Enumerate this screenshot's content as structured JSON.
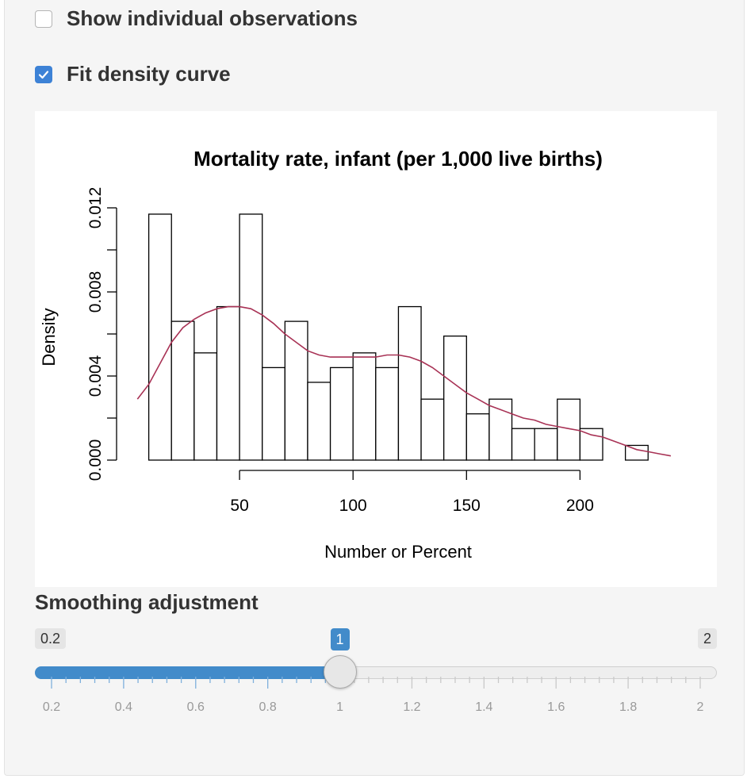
{
  "checkboxes": {
    "show_individual": {
      "label": "Show individual observations",
      "checked": false
    },
    "fit_density": {
      "label": "Fit density curve",
      "checked": true
    }
  },
  "chart_data": {
    "type": "bar",
    "title": "Mortality rate, infant (per 1,000 live births)",
    "xlabel": "Number or Percent",
    "ylabel": "Density",
    "x_ticks": [
      50,
      100,
      150,
      200
    ],
    "y_ticks": [
      "0.000",
      "0.004",
      "0.008",
      "0.012"
    ],
    "xlim": [
      5,
      240
    ],
    "ylim": [
      0,
      0.012
    ],
    "bin_width": 10,
    "bins": [
      {
        "start": 10,
        "end": 20,
        "density": 0.0117
      },
      {
        "start": 20,
        "end": 30,
        "density": 0.0066
      },
      {
        "start": 30,
        "end": 40,
        "density": 0.0051
      },
      {
        "start": 40,
        "end": 50,
        "density": 0.0073
      },
      {
        "start": 50,
        "end": 60,
        "density": 0.0117
      },
      {
        "start": 60,
        "end": 70,
        "density": 0.0044
      },
      {
        "start": 70,
        "end": 80,
        "density": 0.0066
      },
      {
        "start": 80,
        "end": 90,
        "density": 0.0037
      },
      {
        "start": 90,
        "end": 100,
        "density": 0.0044
      },
      {
        "start": 100,
        "end": 110,
        "density": 0.0051
      },
      {
        "start": 110,
        "end": 120,
        "density": 0.0044
      },
      {
        "start": 120,
        "end": 130,
        "density": 0.0073
      },
      {
        "start": 130,
        "end": 140,
        "density": 0.0029
      },
      {
        "start": 140,
        "end": 150,
        "density": 0.0059
      },
      {
        "start": 150,
        "end": 160,
        "density": 0.0022
      },
      {
        "start": 160,
        "end": 170,
        "density": 0.0029
      },
      {
        "start": 170,
        "end": 180,
        "density": 0.0015
      },
      {
        "start": 180,
        "end": 190,
        "density": 0.0015
      },
      {
        "start": 190,
        "end": 200,
        "density": 0.0029
      },
      {
        "start": 200,
        "end": 210,
        "density": 0.0015
      },
      {
        "start": 210,
        "end": 220,
        "density": 0.0
      },
      {
        "start": 220,
        "end": 230,
        "density": 0.0007
      }
    ],
    "density_curve": {
      "color": "#a83255",
      "x": [
        5,
        10,
        15,
        20,
        25,
        30,
        35,
        40,
        45,
        50,
        55,
        60,
        65,
        70,
        75,
        80,
        85,
        90,
        95,
        100,
        105,
        110,
        115,
        120,
        125,
        130,
        135,
        140,
        145,
        150,
        155,
        160,
        165,
        170,
        175,
        180,
        185,
        190,
        195,
        200,
        205,
        210,
        215,
        220,
        225,
        230,
        235,
        240
      ],
      "y": [
        0.0029,
        0.0036,
        0.0046,
        0.0056,
        0.0063,
        0.0067,
        0.007,
        0.0072,
        0.0073,
        0.0073,
        0.0072,
        0.0069,
        0.0065,
        0.006,
        0.0056,
        0.0052,
        0.005,
        0.0049,
        0.0049,
        0.0049,
        0.0049,
        0.0049,
        0.005,
        0.005,
        0.0049,
        0.0047,
        0.0044,
        0.004,
        0.0036,
        0.0032,
        0.0029,
        0.0026,
        0.0024,
        0.0022,
        0.002,
        0.0019,
        0.0017,
        0.0016,
        0.0015,
        0.0014,
        0.0012,
        0.0011,
        0.0009,
        0.0007,
        0.0005,
        0.0004,
        0.0003,
        0.0002
      ]
    }
  },
  "slider": {
    "title": "Smoothing adjustment",
    "min_label": "0.2",
    "max_label": "2",
    "value_label": "1",
    "min": 0.2,
    "max": 2,
    "value": 1,
    "accent": "#428bca",
    "tick_labels": [
      "0.2",
      "0.4",
      "0.6",
      "0.8",
      "1",
      "1.2",
      "1.4",
      "1.6",
      "1.8",
      "2"
    ]
  }
}
